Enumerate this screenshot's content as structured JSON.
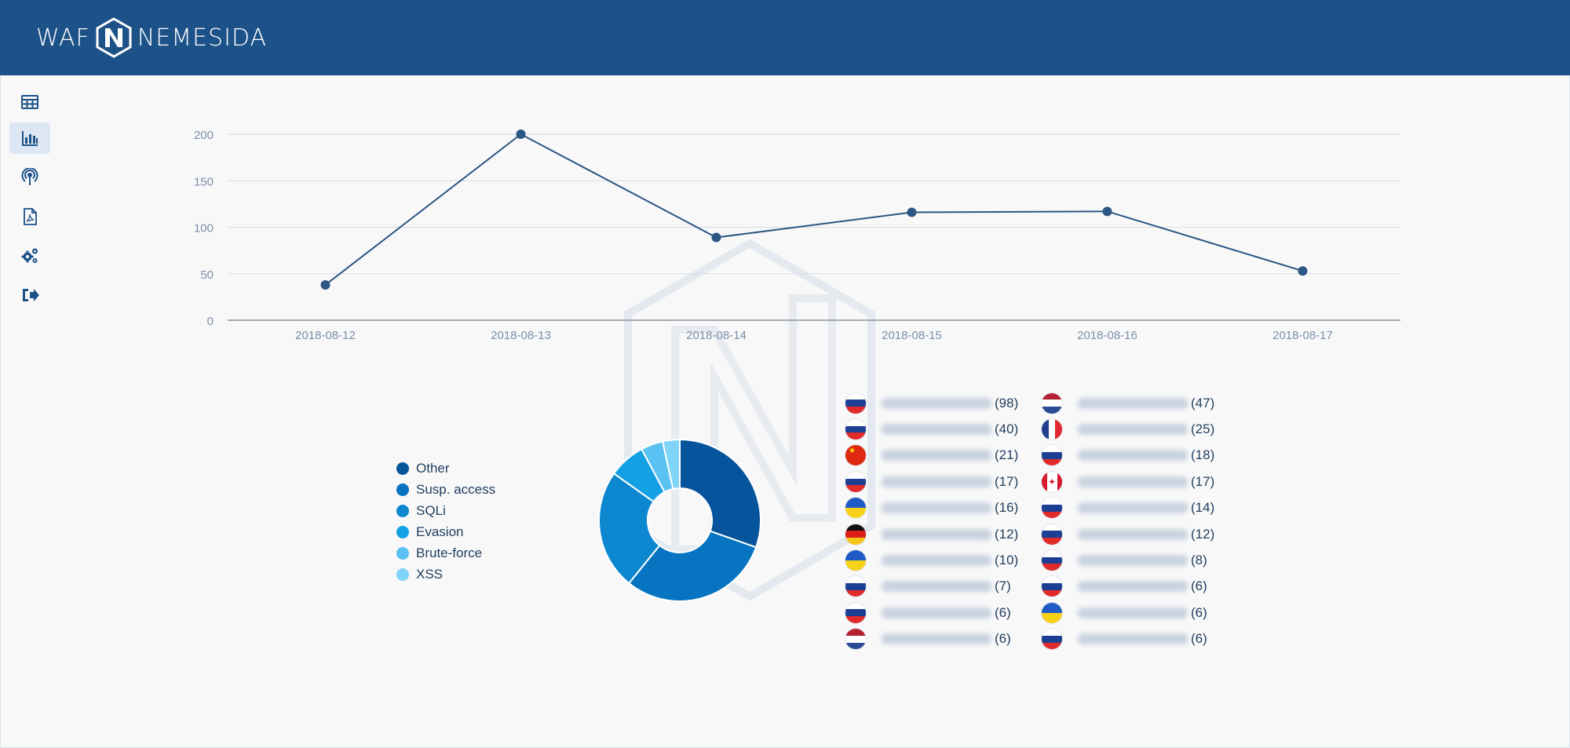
{
  "header": {
    "logo_left": "WAF",
    "logo_right": "NEMESIDA",
    "color": "#1d5289"
  },
  "sidebar": {
    "items": [
      {
        "icon": "table-icon",
        "active": false
      },
      {
        "icon": "bar-chart-icon",
        "active": true
      },
      {
        "icon": "podcast-icon",
        "active": false
      },
      {
        "icon": "pdf-file-icon",
        "active": false
      },
      {
        "icon": "gears-icon",
        "active": false
      },
      {
        "icon": "sign-out-icon",
        "active": false
      }
    ]
  },
  "chart_data": [
    {
      "type": "line",
      "x": [
        "2018-08-12",
        "2018-08-13",
        "2018-08-14",
        "2018-08-15",
        "2018-08-16",
        "2018-08-17"
      ],
      "series": [
        {
          "values": [
            38,
            200,
            89,
            116,
            117,
            53
          ]
        }
      ],
      "ylim": [
        0,
        200
      ],
      "yticks": [
        0,
        50,
        100,
        150,
        200
      ],
      "grid": true,
      "color": "#2c5683"
    },
    {
      "type": "pie",
      "labels": [
        "Other",
        "Susp. access",
        "SQLi",
        "Evasion",
        "Brute-force",
        "XSS"
      ],
      "values": [
        29.5,
        29.5,
        23.3,
        7.1,
        4.3,
        3.3
      ],
      "colors": [
        "#06549c",
        "#0674c0",
        "#0d87d0",
        "#14a1e4",
        "#5ac2f2",
        "#7fd5f7"
      ],
      "legend": "left"
    }
  ],
  "countries": {
    "left": [
      {
        "flag": "ru",
        "count": "(98)"
      },
      {
        "flag": "ru",
        "count": "(40)"
      },
      {
        "flag": "cn",
        "count": "(21)"
      },
      {
        "flag": "ru",
        "count": "(17)"
      },
      {
        "flag": "ua",
        "count": "(16)"
      },
      {
        "flag": "de",
        "count": "(12)"
      },
      {
        "flag": "ua",
        "count": "(10)"
      },
      {
        "flag": "ru",
        "count": "(7)"
      },
      {
        "flag": "ru",
        "count": "(6)"
      },
      {
        "flag": "nl",
        "count": "(6)"
      }
    ],
    "right": [
      {
        "flag": "nl",
        "count": "(47)"
      },
      {
        "flag": "fr",
        "count": "(25)"
      },
      {
        "flag": "ru",
        "count": "(18)"
      },
      {
        "flag": "ca",
        "count": "(17)"
      },
      {
        "flag": "ru",
        "count": "(14)"
      },
      {
        "flag": "ru",
        "count": "(12)"
      },
      {
        "flag": "ru",
        "count": "(8)"
      },
      {
        "flag": "ru",
        "count": "(6)"
      },
      {
        "flag": "ua",
        "count": "(6)"
      },
      {
        "flag": "ru",
        "count": "(6)"
      }
    ]
  }
}
